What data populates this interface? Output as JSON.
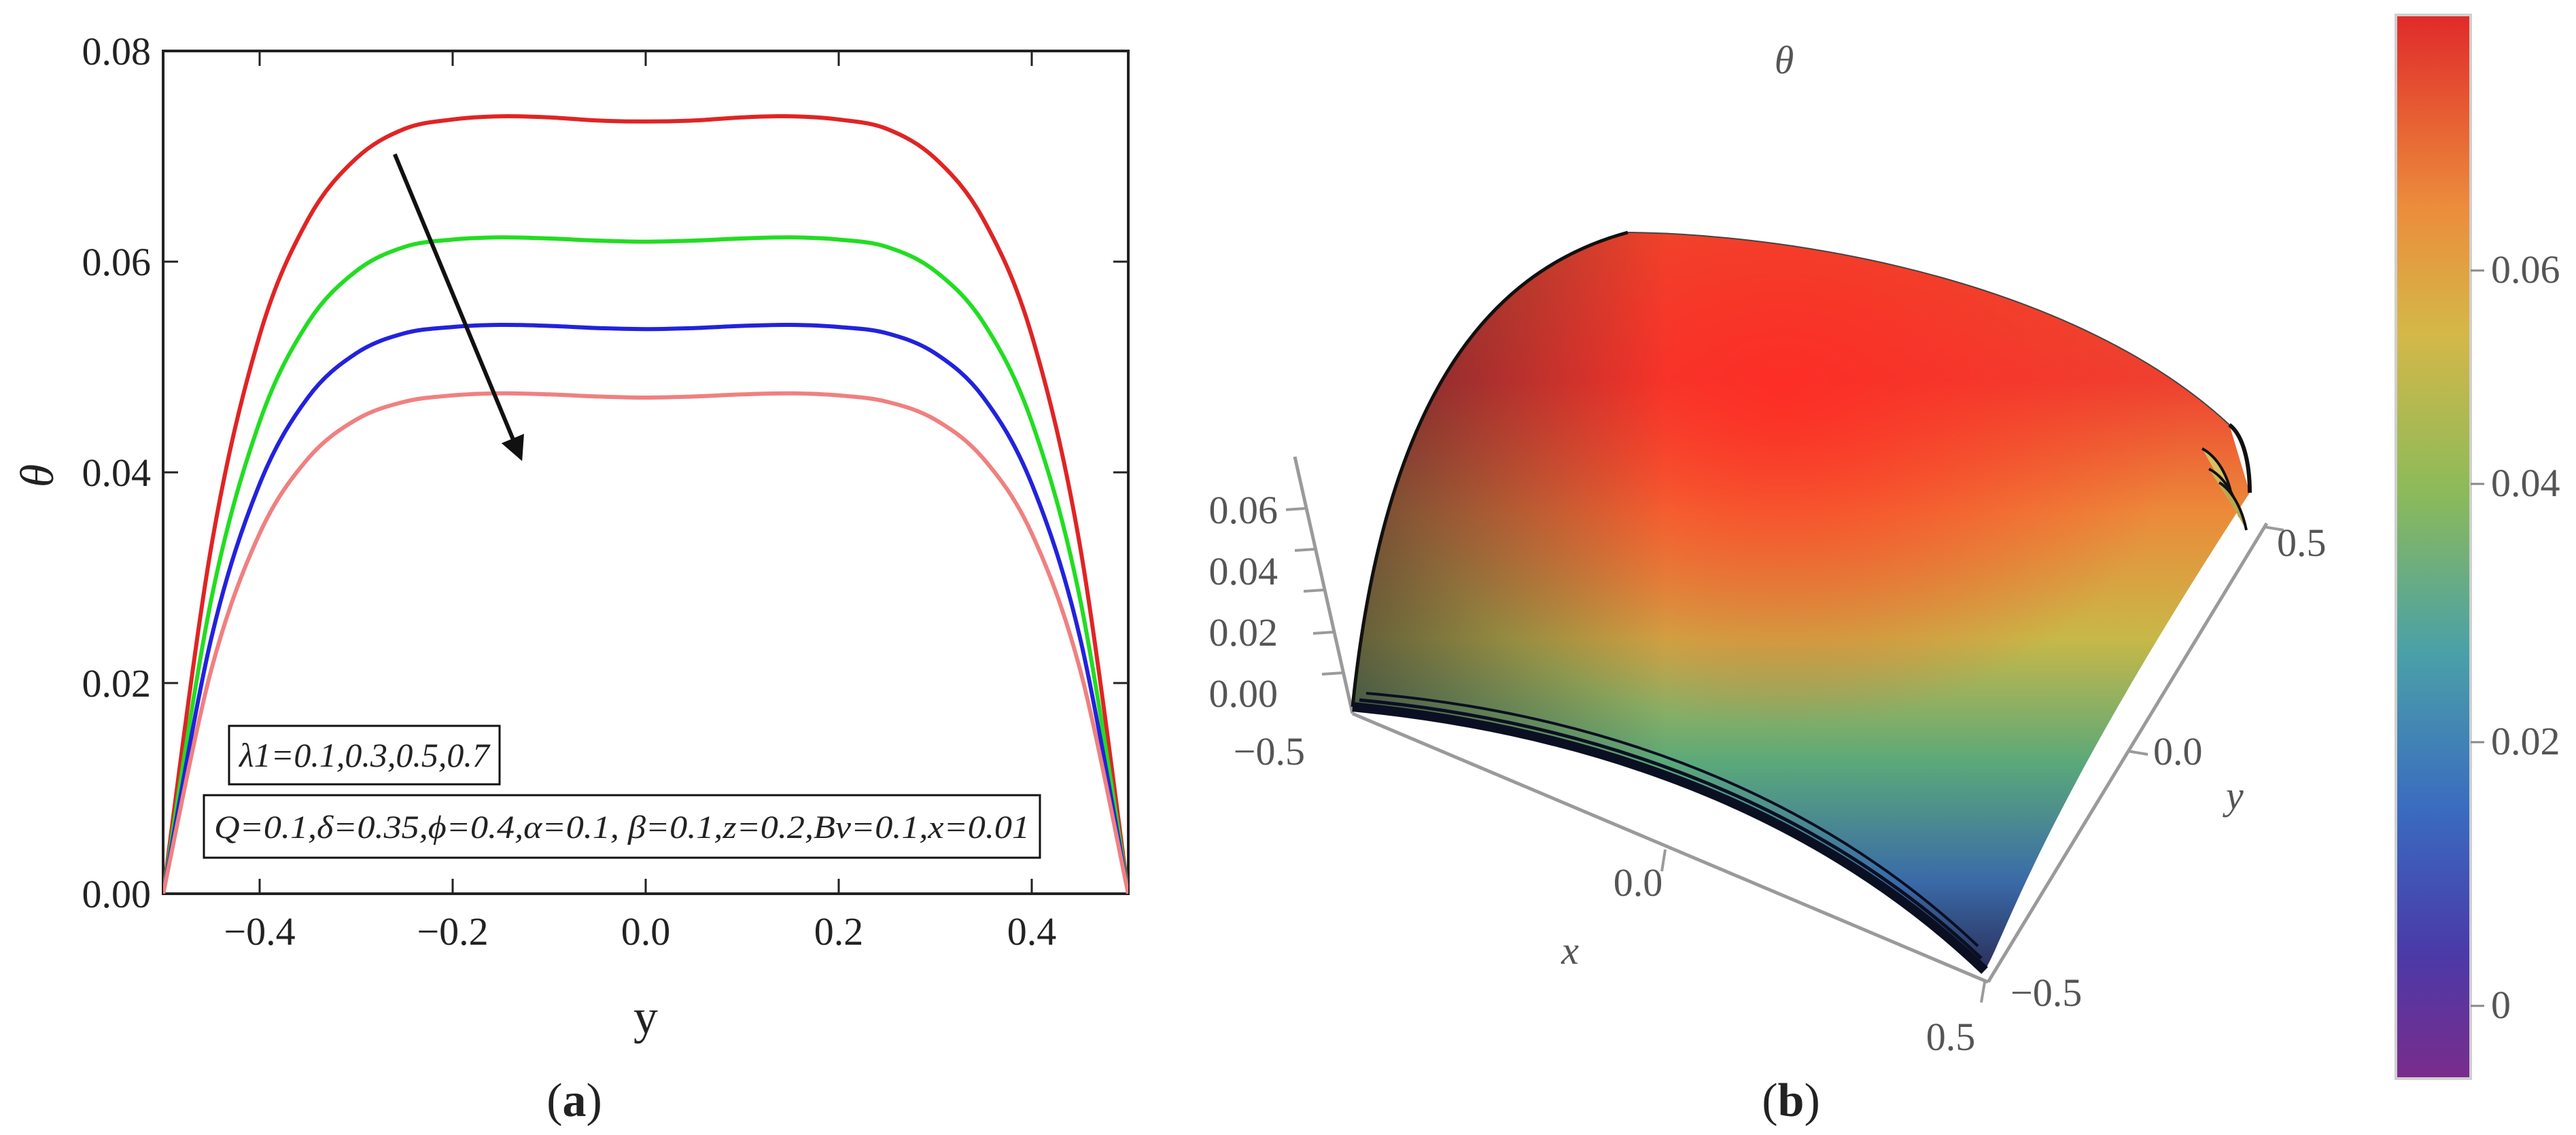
{
  "panel_a": {
    "caption": "(a)",
    "caption_open": "(",
    "caption_letter": "a",
    "caption_close": ")",
    "xlabel": "y",
    "ylabel": "θ",
    "annotation_param": "λ1=0.1,0.3,0.5,0.7",
    "annotation_fixed": "Q=0.1,δ=0.35,ϕ=0.4,α=0.1, β=0.1,z=0.2,Bv=0.1,x=0.01"
  },
  "panel_b": {
    "caption": "(b)",
    "caption_open": "(",
    "caption_letter": "b",
    "caption_close": ")",
    "title": "θ",
    "xlabel": "x",
    "ylabel": "y",
    "z_ticks": [
      "0.06",
      "0.04",
      "0.02",
      "0.00"
    ],
    "x_ticks": [
      "−0.5",
      "0.0",
      "0.5"
    ],
    "y_ticks": [
      "0.5",
      "0.0",
      "−0.5"
    ],
    "colorbar_ticks": [
      "0.06",
      "0.04",
      "0.02",
      "0"
    ],
    "colors": {
      "high": "#e53030",
      "mid": "#e8a23a",
      "low_mid": "#5aa86a",
      "low": "#3a5ab8",
      "min": "#6a2a90"
    }
  },
  "chart_data": [
    {
      "type": "line",
      "xlim": [
        -0.5,
        0.5
      ],
      "ylim": [
        0,
        0.08
      ],
      "x_ticks": [
        -0.4,
        -0.2,
        0.0,
        0.2,
        0.4
      ],
      "x_tick_labels": [
        "−0.4",
        "−0.2",
        "0.0",
        "0.2",
        "0.4"
      ],
      "y_ticks": [
        0,
        0.02,
        0.04,
        0.06,
        0.08
      ],
      "y_tick_labels": [
        "0.00",
        "0.02",
        "0.04",
        "0.06",
        "0.08"
      ],
      "x": [
        -0.5,
        -0.45,
        -0.4,
        -0.35,
        -0.3,
        -0.25,
        -0.2,
        -0.15,
        -0.1,
        -0.05,
        0.0,
        0.05,
        0.1,
        0.15,
        0.2,
        0.25,
        0.3,
        0.35,
        0.4,
        0.45,
        0.5
      ],
      "series": [
        {
          "color": "#e02424",
          "values": [
            0,
            0.033,
            0.053,
            0.064,
            0.0698,
            0.0726,
            0.0735,
            0.0738,
            0.0737,
            0.0734,
            0.0733,
            0.0734,
            0.0737,
            0.0738,
            0.0735,
            0.0726,
            0.0698,
            0.064,
            0.053,
            0.033,
            0
          ]
        },
        {
          "color": "#22dd22",
          "values": [
            0,
            0.028,
            0.0448,
            0.0542,
            0.0591,
            0.0614,
            0.0621,
            0.0623,
            0.0622,
            0.062,
            0.0619,
            0.062,
            0.0622,
            0.0623,
            0.0621,
            0.0614,
            0.0591,
            0.0542,
            0.0448,
            0.028,
            0
          ]
        },
        {
          "color": "#2222dd",
          "values": [
            0,
            0.0243,
            0.0389,
            0.0471,
            0.0513,
            0.0532,
            0.0538,
            0.054,
            0.0539,
            0.0537,
            0.0536,
            0.0537,
            0.0539,
            0.054,
            0.0538,
            0.0532,
            0.0513,
            0.0471,
            0.0389,
            0.0243,
            0
          ]
        },
        {
          "color": "#f08080",
          "values": [
            0,
            0.0213,
            0.0342,
            0.0413,
            0.045,
            0.0467,
            0.0473,
            0.0475,
            0.0474,
            0.0472,
            0.0471,
            0.0472,
            0.0474,
            0.0475,
            0.0473,
            0.0467,
            0.045,
            0.0413,
            0.0342,
            0.0213,
            0
          ]
        }
      ],
      "arrow": {
        "from": [
          -0.26,
          0.0702
        ],
        "to": [
          -0.13,
          0.0415
        ]
      }
    },
    {
      "type": "surface",
      "xlim": [
        -0.5,
        0.5
      ],
      "ylim": [
        -0.5,
        0.5
      ],
      "zlim": [
        0,
        0.07
      ],
      "colorbar_range": [
        -0.003,
        0.077
      ]
    }
  ]
}
